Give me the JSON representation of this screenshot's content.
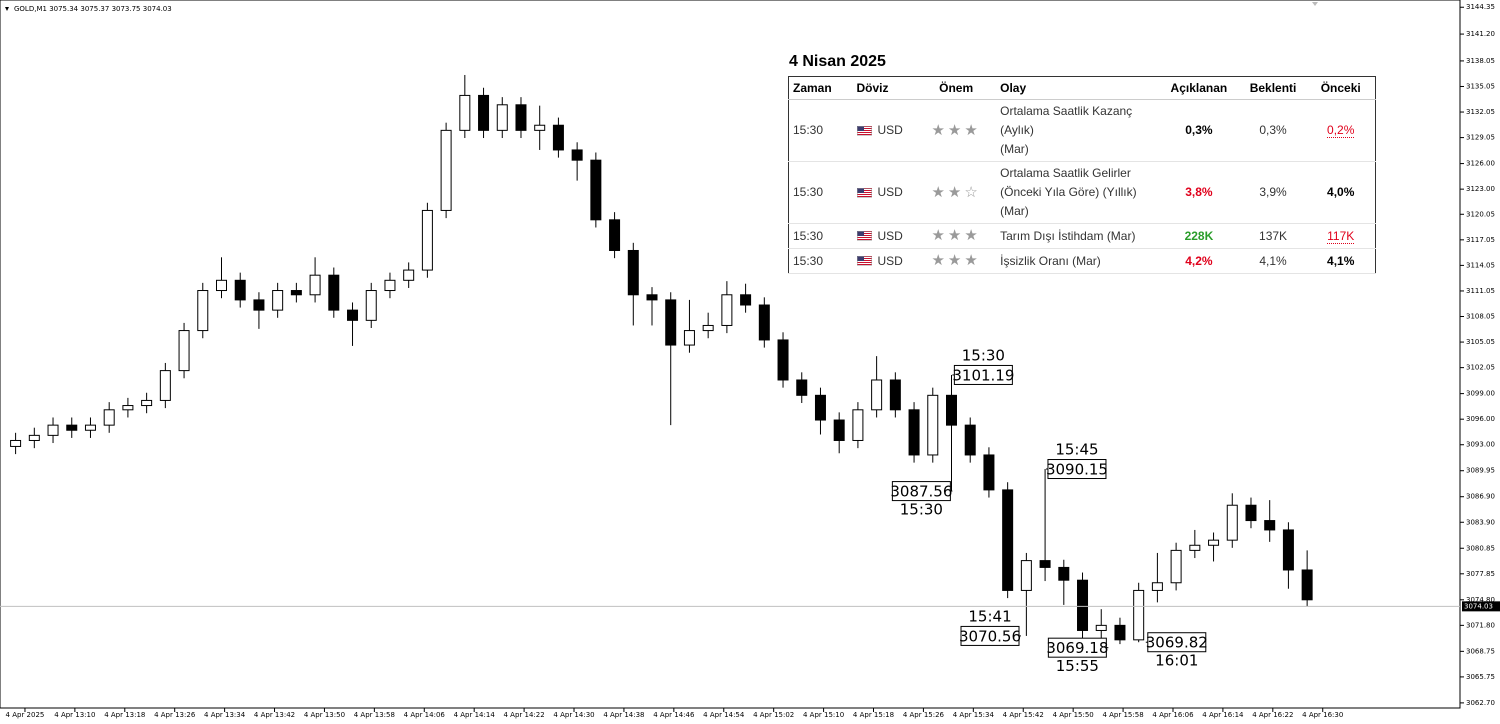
{
  "chart_data": {
    "type": "candlestick",
    "symbol": "GOLD,M1",
    "header_values": [
      3075.34,
      3075.37,
      3073.75,
      3074.03
    ],
    "x": [
      "12:59",
      "13:02",
      "13:05",
      "13:08",
      "13:11",
      "13:14",
      "13:17",
      "13:20",
      "13:23",
      "13:26",
      "13:29",
      "13:32",
      "13:35",
      "13:38",
      "13:41",
      "13:44",
      "13:47",
      "13:50",
      "13:53",
      "13:56",
      "13:59",
      "14:02",
      "14:05",
      "14:08",
      "14:11",
      "14:14",
      "14:17",
      "14:20",
      "14:23",
      "14:26",
      "14:29",
      "14:32",
      "14:35",
      "14:38",
      "14:41",
      "14:44",
      "14:47",
      "14:50",
      "14:53",
      "14:56",
      "14:59",
      "15:02",
      "15:05",
      "15:08",
      "15:11",
      "15:14",
      "15:17",
      "15:20",
      "15:23",
      "15:26",
      "15:29",
      "15:32",
      "15:35",
      "15:38",
      "15:41",
      "15:44",
      "15:47",
      "15:50",
      "15:53",
      "15:56",
      "15:59",
      "16:02",
      "16:05",
      "16:08",
      "16:11",
      "16:14",
      "16:17",
      "16:20",
      "16:23",
      "16:26"
    ],
    "open": [
      3092.8,
      3093.5,
      3094.1,
      3095.3,
      3094.7,
      3095.3,
      3097.1,
      3097.6,
      3098.2,
      3101.7,
      3106.4,
      3111.1,
      3112.3,
      3110.0,
      3108.8,
      3111.1,
      3110.6,
      3112.9,
      3108.8,
      3107.6,
      3111.1,
      3112.3,
      3113.5,
      3120.5,
      3129.9,
      3134.0,
      3129.9,
      3132.9,
      3129.9,
      3130.5,
      3127.6,
      3126.4,
      3119.4,
      3115.8,
      3110.6,
      3110.0,
      3104.7,
      3106.4,
      3107.0,
      3110.6,
      3109.4,
      3105.3,
      3100.6,
      3098.8,
      3095.9,
      3093.5,
      3097.1,
      3100.6,
      3097.1,
      3091.8,
      3098.8,
      3095.3,
      3091.8,
      3087.7,
      3075.9,
      3079.4,
      3078.6,
      3077.1,
      3071.2,
      3071.8,
      3070.1,
      3075.9,
      3076.8,
      3080.6,
      3081.2,
      3081.8,
      3085.9,
      3084.1,
      3083.0,
      3078.3
    ],
    "high": [
      3094.4,
      3095.0,
      3096.2,
      3096.2,
      3096.2,
      3098.0,
      3098.5,
      3099.1,
      3102.6,
      3107.3,
      3112.0,
      3115.0,
      3113.2,
      3110.9,
      3112.0,
      3112.0,
      3115.0,
      3113.8,
      3109.7,
      3112.0,
      3113.2,
      3114.4,
      3121.4,
      3130.8,
      3136.4,
      3134.9,
      3133.8,
      3133.8,
      3132.8,
      3131.4,
      3128.5,
      3127.3,
      3120.3,
      3116.7,
      3111.5,
      3110.9,
      3110.0,
      3108.5,
      3112.2,
      3111.9,
      3110.3,
      3106.2,
      3101.5,
      3099.7,
      3096.8,
      3098.0,
      3103.4,
      3101.5,
      3098.0,
      3099.7,
      3101.19,
      3096.2,
      3092.7,
      3088.6,
      3080.3,
      3090.15,
      3079.5,
      3078.0,
      3073.7,
      3072.7,
      3076.8,
      3080.3,
      3081.5,
      3083.0,
      3082.7,
      3087.3,
      3086.8,
      3086.5,
      3083.9,
      3080.6
    ],
    "low": [
      3091.9,
      3092.6,
      3093.2,
      3093.8,
      3093.8,
      3094.4,
      3096.2,
      3096.7,
      3097.3,
      3100.8,
      3105.5,
      3110.2,
      3109.1,
      3106.6,
      3107.9,
      3109.7,
      3109.7,
      3107.9,
      3104.6,
      3106.7,
      3110.2,
      3111.4,
      3112.6,
      3119.6,
      3129.0,
      3129.0,
      3129.0,
      3129.0,
      3127.6,
      3126.7,
      3124.0,
      3118.5,
      3114.9,
      3107.0,
      3107.0,
      3095.3,
      3103.8,
      3105.5,
      3106.1,
      3108.5,
      3104.4,
      3099.7,
      3097.9,
      3094.2,
      3092.0,
      3092.6,
      3096.2,
      3096.2,
      3090.9,
      3090.9,
      3087.56,
      3090.9,
      3086.8,
      3075.0,
      3070.56,
      3077.0,
      3074.2,
      3070.3,
      3069.18,
      3069.6,
      3069.82,
      3074.5,
      3075.9,
      3079.7,
      3079.3,
      3080.9,
      3083.2,
      3081.6,
      3076.1,
      3074.0
    ],
    "close": [
      3093.5,
      3094.1,
      3095.3,
      3094.7,
      3095.3,
      3097.1,
      3097.6,
      3098.2,
      3101.7,
      3106.4,
      3111.1,
      3112.3,
      3110.0,
      3108.8,
      3111.1,
      3110.6,
      3112.9,
      3108.8,
      3107.6,
      3111.1,
      3112.3,
      3113.5,
      3120.5,
      3129.9,
      3134.0,
      3129.9,
      3132.9,
      3129.9,
      3130.5,
      3127.6,
      3126.4,
      3119.4,
      3115.8,
      3110.6,
      3110.0,
      3104.7,
      3106.4,
      3107.0,
      3110.6,
      3109.4,
      3105.3,
      3100.6,
      3098.8,
      3095.9,
      3093.5,
      3097.1,
      3100.6,
      3097.1,
      3091.8,
      3098.8,
      3095.3,
      3091.8,
      3087.7,
      3075.9,
      3079.4,
      3078.6,
      3077.1,
      3071.2,
      3071.8,
      3070.1,
      3075.9,
      3076.8,
      3080.6,
      3081.2,
      3081.8,
      3085.9,
      3084.1,
      3083.0,
      3078.3,
      3074.8
    ],
    "up_color": "#ffffff",
    "down_color": "#000000",
    "last_price": 3074.03,
    "xlim": [
      "12:58",
      "16:52"
    ],
    "ylim": [
      3062.1,
      3145.2
    ],
    "yticks": [
      {
        "value": 3144.35,
        "label": "3144.35"
      },
      {
        "value": 3141.2,
        "label": "3141.20"
      },
      {
        "value": 3138.05,
        "label": "3138.05"
      },
      {
        "value": 3135.05,
        "label": "3135.05"
      },
      {
        "value": 3132.05,
        "label": "3132.05"
      },
      {
        "value": 3129.05,
        "label": "3129.05"
      },
      {
        "value": 3126.0,
        "label": "3126.00"
      },
      {
        "value": 3123.0,
        "label": "3123.00"
      },
      {
        "value": 3120.05,
        "label": "3120.05"
      },
      {
        "value": 3117.05,
        "label": "3117.05"
      },
      {
        "value": 3114.05,
        "label": "3114.05"
      },
      {
        "value": 3111.05,
        "label": "3111.05"
      },
      {
        "value": 3108.05,
        "label": "3108.05"
      },
      {
        "value": 3105.05,
        "label": "3105.05"
      },
      {
        "value": 3102.05,
        "label": "3102.05"
      },
      {
        "value": 3099.0,
        "label": "3099.00"
      },
      {
        "value": 3096.0,
        "label": "3096.00"
      },
      {
        "value": 3093.0,
        "label": "3093.00"
      },
      {
        "value": 3089.95,
        "label": "3089.95"
      },
      {
        "value": 3086.9,
        "label": "3086.90"
      },
      {
        "value": 3083.9,
        "label": "3083.90"
      },
      {
        "value": 3080.85,
        "label": "3080.85"
      },
      {
        "value": 3077.85,
        "label": "3077.85"
      },
      {
        "value": 3074.8,
        "label": "3074.80"
      },
      {
        "value": 3071.8,
        "label": "3071.80"
      },
      {
        "value": 3068.75,
        "label": "3068.75"
      },
      {
        "value": 3065.75,
        "label": "3065.75"
      },
      {
        "value": 3062.7,
        "label": "3062.70"
      }
    ],
    "xticks": [
      {
        "value": "13:02",
        "label": "4 Apr 2025"
      },
      {
        "value": "13:10",
        "label": "4 Apr 13:10"
      },
      {
        "value": "13:18",
        "label": "4 Apr 13:18"
      },
      {
        "value": "13:26",
        "label": "4 Apr 13:26"
      },
      {
        "value": "13:34",
        "label": "4 Apr 13:34"
      },
      {
        "value": "13:42",
        "label": "4 Apr 13:42"
      },
      {
        "value": "13:50",
        "label": "4 Apr 13:50"
      },
      {
        "value": "13:58",
        "label": "4 Apr 13:58"
      },
      {
        "value": "14:06",
        "label": "4 Apr 14:06"
      },
      {
        "value": "14:14",
        "label": "4 Apr 14:14"
      },
      {
        "value": "14:22",
        "label": "4 Apr 14:22"
      },
      {
        "value": "14:30",
        "label": "4 Apr 14:30"
      },
      {
        "value": "14:38",
        "label": "4 Apr 14:38"
      },
      {
        "value": "14:46",
        "label": "4 Apr 14:46"
      },
      {
        "value": "14:54",
        "label": "4 Apr 14:54"
      },
      {
        "value": "15:02",
        "label": "4 Apr 15:02"
      },
      {
        "value": "15:10",
        "label": "4 Apr 15:10"
      },
      {
        "value": "15:18",
        "label": "4 Apr 15:18"
      },
      {
        "value": "15:26",
        "label": "4 Apr 15:26"
      },
      {
        "value": "15:34",
        "label": "4 Apr 15:34"
      },
      {
        "value": "15:42",
        "label": "4 Apr 15:42"
      },
      {
        "value": "15:50",
        "label": "4 Apr 15:50"
      },
      {
        "value": "15:58",
        "label": "4 Apr 15:58"
      },
      {
        "value": "16:06",
        "label": "4 Apr 16:06"
      },
      {
        "value": "16:14",
        "label": "4 Apr 16:14"
      },
      {
        "value": "16:22",
        "label": "4 Apr 16:22"
      },
      {
        "value": "16:30",
        "label": "4 Apr 16:30"
      }
    ],
    "annotations": [
      {
        "time": "15:30",
        "value": 3101.19
      },
      {
        "time": "15:30",
        "value": 3087.56
      },
      {
        "time": "15:45",
        "value": 3090.15
      },
      {
        "time": "15:41",
        "value": 3070.56
      },
      {
        "time": "15:55",
        "value": 3069.18
      },
      {
        "time": "16:01",
        "value": 3069.82
      }
    ]
  },
  "calendar": {
    "title": "4 Nisan 2025",
    "columns": [
      "Zaman",
      "Döviz",
      "Önem",
      "Olay",
      "Açıklanan",
      "Beklenti",
      "Önceki"
    ],
    "rows": [
      {
        "time": "15:30",
        "currency": "USD",
        "importance": 3,
        "event": [
          "Ortalama Saatlik Kazanç (Aylık)",
          "(Mar)"
        ],
        "actual": "0,3%",
        "forecast": "0,3%",
        "previous": "0,2%",
        "actual_color": "#000000",
        "previous_color": "#e0001b"
      },
      {
        "time": "15:30",
        "currency": "USD",
        "importance": 2,
        "event": [
          "Ortalama Saatlik Gelirler",
          "(Önceki Yıla Göre) (Yıllık) (Mar)"
        ],
        "actual": "3,8%",
        "forecast": "3,9%",
        "previous": "4,0%",
        "actual_color": "#e0001b",
        "previous_color": "#000000"
      },
      {
        "time": "15:30",
        "currency": "USD",
        "importance": 3,
        "event": [
          "Tarım Dışı İstihdam (Mar)"
        ],
        "actual": "228K",
        "forecast": "137K",
        "previous": "117K",
        "actual_color": "#2a9d2a",
        "previous_color": "#e0001b"
      },
      {
        "time": "15:30",
        "currency": "USD",
        "importance": 3,
        "event": [
          "İşsizlik Oranı (Mar)"
        ],
        "actual": "4,2%",
        "forecast": "4,1%",
        "previous": "4,1%",
        "actual_color": "#e0001b",
        "previous_color": "#000000"
      }
    ]
  }
}
